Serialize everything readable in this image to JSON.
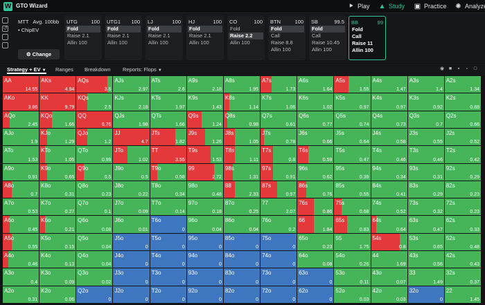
{
  "topbar": {
    "app_title": "GTO Wizard",
    "nav": [
      {
        "label": "Play",
        "icon": "play-icon"
      },
      {
        "label": "Study",
        "icon": "graduation-cap-icon"
      },
      {
        "label": "Practice",
        "icon": "gamepad-icon"
      },
      {
        "label": "Analyze",
        "icon": "bulb-icon"
      }
    ],
    "active_nav": "Study"
  },
  "game": {
    "format": "MTT",
    "avg": "Avg. 100bb",
    "model": "ChipEV",
    "change_label": "Change"
  },
  "positions": [
    {
      "name": "UTG",
      "stack": "100",
      "actions": [
        "Fold",
        "Raise 2.1",
        "Allin 100"
      ],
      "selected": 0
    },
    {
      "name": "UTG1",
      "stack": "100",
      "actions": [
        "Fold",
        "Raise 2.1",
        "Allin 100"
      ],
      "selected": 0
    },
    {
      "name": "LJ",
      "stack": "100",
      "actions": [
        "Fold",
        "Raise 2.1",
        "Allin 100"
      ],
      "selected": 0
    },
    {
      "name": "HJ",
      "stack": "100",
      "actions": [
        "Fold",
        "Raise 2.1",
        "Allin 100"
      ],
      "selected": 0
    },
    {
      "name": "CO",
      "stack": "100",
      "actions": [
        "Fold",
        "Raise 2.2",
        "Allin 100"
      ],
      "selected": 1
    },
    {
      "name": "BTN",
      "stack": "100",
      "actions": [
        "Fold",
        "Call",
        "Raise 8.8",
        "Allin 100"
      ],
      "selected": 0
    },
    {
      "name": "SB",
      "stack": "99.5",
      "actions": [
        "Fold",
        "Call",
        "Raise 10.45",
        "Allin 100"
      ],
      "selected": 0
    },
    {
      "name": "BB",
      "stack": "99",
      "actions": [
        "Fold",
        "Call",
        "Raise 11",
        "Allin 100"
      ],
      "selected": -1,
      "current": true
    }
  ],
  "tabs": {
    "items": [
      "Strategy + EV",
      "Ranges",
      "Breakdown",
      "Reports: Flops"
    ],
    "active": 0
  },
  "colors": {
    "raise": "#e5383b",
    "call": "#46b55a",
    "fold": "#3f76c0",
    "accent": "#2fc49a"
  },
  "grid": [
    [
      [
        "AA",
        "14.55",
        1,
        0
      ],
      [
        "AKs",
        "4.94",
        1,
        0
      ],
      [
        "AQs",
        "3.6",
        0.85,
        0.15
      ],
      [
        "AJs",
        "2.97",
        0,
        1
      ],
      [
        "ATs",
        "2.6",
        0,
        1
      ],
      [
        "A9s",
        "2.18",
        0,
        1
      ],
      [
        "A8s",
        "1.95",
        0,
        1
      ],
      [
        "A7s",
        "1.73",
        0.3,
        0.7
      ],
      [
        "A6s",
        "1.64",
        0,
        1
      ],
      [
        "A5s",
        "1.55",
        0.4,
        0.6
      ],
      [
        "A4s",
        "1.47",
        0,
        1
      ],
      [
        "A3s",
        "1.4",
        0,
        1
      ],
      [
        "A2s",
        "1.34",
        0,
        1
      ]
    ],
    [
      [
        "AKo",
        "3.86",
        1,
        0
      ],
      [
        "KK",
        "9.79",
        1,
        0
      ],
      [
        "KQs",
        "2.5",
        0.3,
        0.7
      ],
      [
        "KJs",
        "2.18",
        0,
        1
      ],
      [
        "KTs",
        "1.97",
        0,
        1
      ],
      [
        "K9s",
        "1.43",
        0,
        1
      ],
      [
        "K8s",
        "1.14",
        0.15,
        0.85
      ],
      [
        "K7s",
        "1.06",
        0,
        1
      ],
      [
        "K6s",
        "1.02",
        0,
        1
      ],
      [
        "K5s",
        "0.97",
        0,
        1
      ],
      [
        "K4s",
        "0.97",
        0,
        1
      ],
      [
        "K3s",
        "0.92",
        0,
        1
      ],
      [
        "K2s",
        "0.88",
        0,
        1
      ]
    ],
    [
      [
        "AQo",
        "2.45",
        0.2,
        0.8
      ],
      [
        "KQo",
        "1.66",
        0.35,
        0.65
      ],
      [
        "QQ",
        "6.76",
        1,
        0
      ],
      [
        "QJs",
        "1.98",
        0,
        1
      ],
      [
        "QTs",
        "1.66",
        0,
        1
      ],
      [
        "Q9s",
        "1.24",
        0.4,
        0.6
      ],
      [
        "Q8s",
        "0.98",
        0.1,
        0.9
      ],
      [
        "Q7s",
        "0.81",
        0,
        1
      ],
      [
        "Q6s",
        "0.77",
        0,
        1
      ],
      [
        "Q5s",
        "0.74",
        0,
        1
      ],
      [
        "Q4s",
        "0.73",
        0,
        1
      ],
      [
        "Q3s",
        "0.7",
        0,
        1
      ],
      [
        "Q2s",
        "0.66",
        0,
        1
      ]
    ],
    [
      [
        "AJo",
        "1.9",
        0,
        1
      ],
      [
        "KJo",
        "1.29",
        0.2,
        0.8
      ],
      [
        "QJo",
        "1.2",
        0.3,
        0.7
      ],
      [
        "JJ",
        "4.7",
        1,
        0
      ],
      [
        "JTs",
        "1.82",
        0.7,
        0.3
      ],
      [
        "J9s",
        "1.26",
        0.5,
        0.5
      ],
      [
        "J8s",
        "1.05",
        0.3,
        0.7
      ],
      [
        "J7s",
        "0.78",
        0.1,
        0.9
      ],
      [
        "J6s",
        "0.66",
        0,
        1
      ],
      [
        "J5s",
        "0.64",
        0,
        1
      ],
      [
        "J4s",
        "0.58",
        0,
        1
      ],
      [
        "J3s",
        "0.55",
        0,
        1
      ],
      [
        "J2s",
        "0.52",
        0,
        1
      ]
    ],
    [
      [
        "ATo",
        "1.53",
        0,
        1
      ],
      [
        "KTo",
        "1.05",
        0.15,
        0.85
      ],
      [
        "QTo",
        "0.99",
        0,
        1
      ],
      [
        "JTo",
        "1.02",
        0.4,
        0.6
      ],
      [
        "TT",
        "3.55",
        1,
        0
      ],
      [
        "T9s",
        "1.53",
        0.65,
        0.35
      ],
      [
        "T8s",
        "1.11",
        0.3,
        0.7
      ],
      [
        "T7s",
        "0.8",
        0.35,
        0.65
      ],
      [
        "T6s",
        "0.59",
        0.3,
        0.7
      ],
      [
        "T5s",
        "0.47",
        0,
        1
      ],
      [
        "T4s",
        "0.46",
        0,
        1
      ],
      [
        "T3s",
        "0.46",
        0,
        1
      ],
      [
        "T2s",
        "0.42",
        0,
        1
      ]
    ],
    [
      [
        "A9o",
        "0.91",
        0,
        1
      ],
      [
        "K9o",
        "0.65",
        0.2,
        0.8
      ],
      [
        "Q9o",
        "0.5",
        0.2,
        0.8
      ],
      [
        "J9o",
        "0.5",
        0,
        1
      ],
      [
        "T9o",
        "0.58",
        0.2,
        0.8
      ],
      [
        "99",
        "2.72",
        0.75,
        0.25
      ],
      [
        "98s",
        "1.31",
        0.25,
        0.75
      ],
      [
        "97s",
        "0.91",
        0.35,
        0.65
      ],
      [
        "96s",
        "0.62",
        0,
        1
      ],
      [
        "95s",
        "0.39",
        0,
        1
      ],
      [
        "94s",
        "0.34",
        0,
        1
      ],
      [
        "93s",
        "0.31",
        0,
        1
      ],
      [
        "92s",
        "0.29",
        0,
        1
      ]
    ],
    [
      [
        "A8o",
        "0.7",
        0.25,
        0.75
      ],
      [
        "K8o",
        "0.31",
        0,
        1
      ],
      [
        "Q8o",
        "0.23",
        0,
        1
      ],
      [
        "J8o",
        "0.22",
        0,
        1
      ],
      [
        "T8o",
        "0.34",
        0,
        1
      ],
      [
        "98o",
        "0.48",
        0,
        1
      ],
      [
        "88",
        "2.33",
        0.3,
        0.7
      ],
      [
        "87s",
        "0.97",
        0.45,
        0.55
      ],
      [
        "86s",
        "0.76",
        0.25,
        0.75
      ],
      [
        "85s",
        "0.55",
        0,
        1
      ],
      [
        "84s",
        "0.41",
        0,
        1
      ],
      [
        "83s",
        "0.29",
        0,
        1
      ],
      [
        "82s",
        "0.23",
        0,
        1
      ]
    ],
    [
      [
        "A7o",
        "0.53",
        0,
        1
      ],
      [
        "K7o",
        "0.27",
        0,
        1
      ],
      [
        "Q7o",
        "0.1",
        0,
        1
      ],
      [
        "J7o",
        "0.09",
        0,
        1
      ],
      [
        "T7o",
        "0.14",
        0,
        1
      ],
      [
        "97o",
        "0.18",
        0,
        1
      ],
      [
        "87o",
        "0.25",
        0,
        1
      ],
      [
        "77",
        "2.07",
        0,
        1
      ],
      [
        "76s",
        "0.86",
        0.45,
        0.55
      ],
      [
        "75s",
        "0.68",
        0.2,
        0.8
      ],
      [
        "74s",
        "0.52",
        0,
        1
      ],
      [
        "73s",
        "0.32",
        0,
        1
      ],
      [
        "72s",
        "0.23",
        0,
        1
      ]
    ],
    [
      [
        "A6o",
        "0.45",
        0.2,
        0.8
      ],
      [
        "K6o",
        "0.21",
        0.15,
        0.85
      ],
      [
        "Q6o",
        "0.08",
        0,
        1
      ],
      [
        "J6o",
        "0.01",
        0,
        1
      ],
      [
        "T6o",
        "0",
        0,
        0
      ],
      [
        "96o",
        "0.04",
        0,
        1
      ],
      [
        "86o",
        "0.04",
        0,
        1
      ],
      [
        "76o",
        "0.2",
        0,
        1
      ],
      [
        "66",
        "1.84",
        0.45,
        0.55
      ],
      [
        "65s",
        "0.83",
        0.35,
        0.65
      ],
      [
        "64s",
        "0.64",
        0.15,
        0.85
      ],
      [
        "63s",
        "0.47",
        0,
        1
      ],
      [
        "62s",
        "0.33",
        0,
        1
      ]
    ],
    [
      [
        "A5o",
        "0.55",
        0.25,
        0.75
      ],
      [
        "K5o",
        "0.15",
        0,
        1
      ],
      [
        "Q5o",
        "0.04",
        0,
        1
      ],
      [
        "J5o",
        "0",
        0,
        0
      ],
      [
        "T5o",
        "0",
        0,
        0
      ],
      [
        "95o",
        "0",
        0,
        0
      ],
      [
        "85o",
        "0",
        0,
        0
      ],
      [
        "75o",
        "0",
        0,
        0
      ],
      [
        "65o",
        "0.23",
        0,
        1
      ],
      [
        "55",
        "1.75",
        0,
        1
      ],
      [
        "54s",
        "0.8",
        0.8,
        0.2
      ],
      [
        "53s",
        "0.65",
        0,
        1
      ],
      [
        "52s",
        "0.48",
        0,
        1
      ]
    ],
    [
      [
        "A4o",
        "0.46",
        0.15,
        0.85
      ],
      [
        "K4o",
        "0.13",
        0,
        1
      ],
      [
        "Q4o",
        "0.04",
        0,
        1
      ],
      [
        "J4o",
        "0",
        0,
        0
      ],
      [
        "T4o",
        "0",
        0,
        0
      ],
      [
        "94o",
        "0",
        0,
        0
      ],
      [
        "84o",
        "0",
        0,
        0
      ],
      [
        "74o",
        "0",
        0,
        0
      ],
      [
        "64o",
        "0.08",
        0,
        1
      ],
      [
        "54o",
        "0.26",
        0,
        1
      ],
      [
        "44",
        "1.69",
        0,
        1
      ],
      [
        "43s",
        "0.56",
        0,
        1
      ],
      [
        "42s",
        "0.43",
        0,
        1
      ]
    ],
    [
      [
        "A3o",
        "0.4",
        0,
        1
      ],
      [
        "K3o",
        "0.09",
        0,
        1
      ],
      [
        "Q3o",
        "0.02",
        0,
        1
      ],
      [
        "J3o",
        "0",
        0,
        0
      ],
      [
        "T3o",
        "0",
        0,
        0
      ],
      [
        "93o",
        "0",
        0,
        0
      ],
      [
        "83o",
        "0",
        0,
        0
      ],
      [
        "73o",
        "0",
        0,
        0
      ],
      [
        "63o",
        "0",
        0,
        0
      ],
      [
        "53o",
        "0.11",
        0,
        1
      ],
      [
        "43o",
        "0.07",
        0,
        1
      ],
      [
        "33",
        "1.49",
        0,
        1
      ],
      [
        "32s",
        "0.37",
        0,
        1
      ]
    ],
    [
      [
        "A2o",
        "0.31",
        0,
        1
      ],
      [
        "K2o",
        "0.06",
        0,
        1
      ],
      [
        "Q2o",
        "0",
        0,
        0
      ],
      [
        "J2o",
        "0",
        0,
        0
      ],
      [
        "T2o",
        "0",
        0,
        0
      ],
      [
        "92o",
        "0",
        0,
        0
      ],
      [
        "82o",
        "0",
        0,
        0
      ],
      [
        "72o",
        "0",
        0,
        0
      ],
      [
        "62o",
        "0",
        0,
        0
      ],
      [
        "52o",
        "0.03",
        0,
        1
      ],
      [
        "42o",
        "0.03",
        0,
        1
      ],
      [
        "32o",
        "0",
        0,
        0
      ],
      [
        "22",
        "1.45",
        0,
        1
      ]
    ]
  ]
}
